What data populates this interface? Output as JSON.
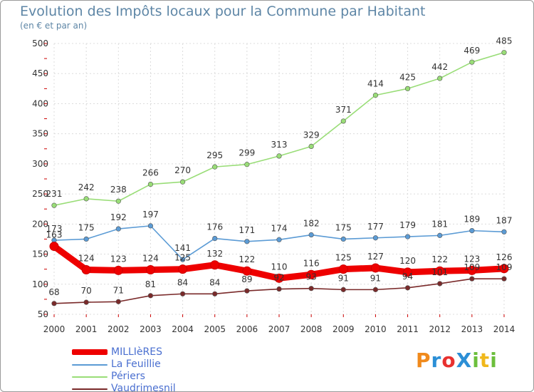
{
  "chart_data": {
    "type": "line",
    "title": "Evolution des Impôts locaux pour la Commune par Habitant",
    "subtitle": "(en € et par an)",
    "xlabel": "",
    "ylabel": "",
    "x": [
      "2000",
      "2001",
      "2002",
      "2003",
      "2004",
      "2005",
      "2006",
      "2007",
      "2008",
      "2009",
      "2010",
      "2011",
      "2012",
      "2013",
      "2014"
    ],
    "ylim": [
      50,
      500
    ],
    "yticks": [
      50,
      100,
      150,
      200,
      250,
      300,
      350,
      400,
      450,
      500
    ],
    "grid": true,
    "legend_position": "bottom-left",
    "series": [
      {
        "name": "Périers",
        "color": "#99dd77",
        "values": [
          231,
          242,
          238,
          266,
          270,
          295,
          299,
          313,
          329,
          371,
          414,
          425,
          442,
          469,
          485
        ]
      },
      {
        "name": "La Feuillie",
        "color": "#5b9bd5",
        "values": [
          173,
          175,
          192,
          197,
          141,
          176,
          171,
          174,
          182,
          175,
          177,
          179,
          181,
          189,
          187
        ]
      },
      {
        "name": "MILLIèRES",
        "color": "#ee0000",
        "values": [
          163,
          124,
          123,
          124,
          125,
          132,
          122,
          110,
          116,
          125,
          127,
          120,
          122,
          123,
          126
        ]
      },
      {
        "name": "Vaudrimesnil",
        "color": "#7a2a2a",
        "values": [
          68,
          70,
          71,
          81,
          84,
          84,
          89,
          92,
          93,
          91,
          91,
          94,
          101,
          109,
          109
        ]
      }
    ]
  },
  "legend": [
    {
      "label": "MILLIèRES",
      "color": "#ee0000",
      "thick": true
    },
    {
      "label": "La Feuillie",
      "color": "#5b9bd5",
      "thick": false
    },
    {
      "label": "Périers",
      "color": "#99dd77",
      "thick": false
    },
    {
      "label": "Vaudrimesnil",
      "color": "#7a2a2a",
      "thick": false
    }
  ],
  "logo": {
    "text": "ProXiti",
    "colors": [
      "#f08a1c",
      "#2c8fd6",
      "#e8312f",
      "#2c8fd6",
      "#6cbf3c",
      "#f0b81c",
      "#6cbf3c"
    ]
  }
}
